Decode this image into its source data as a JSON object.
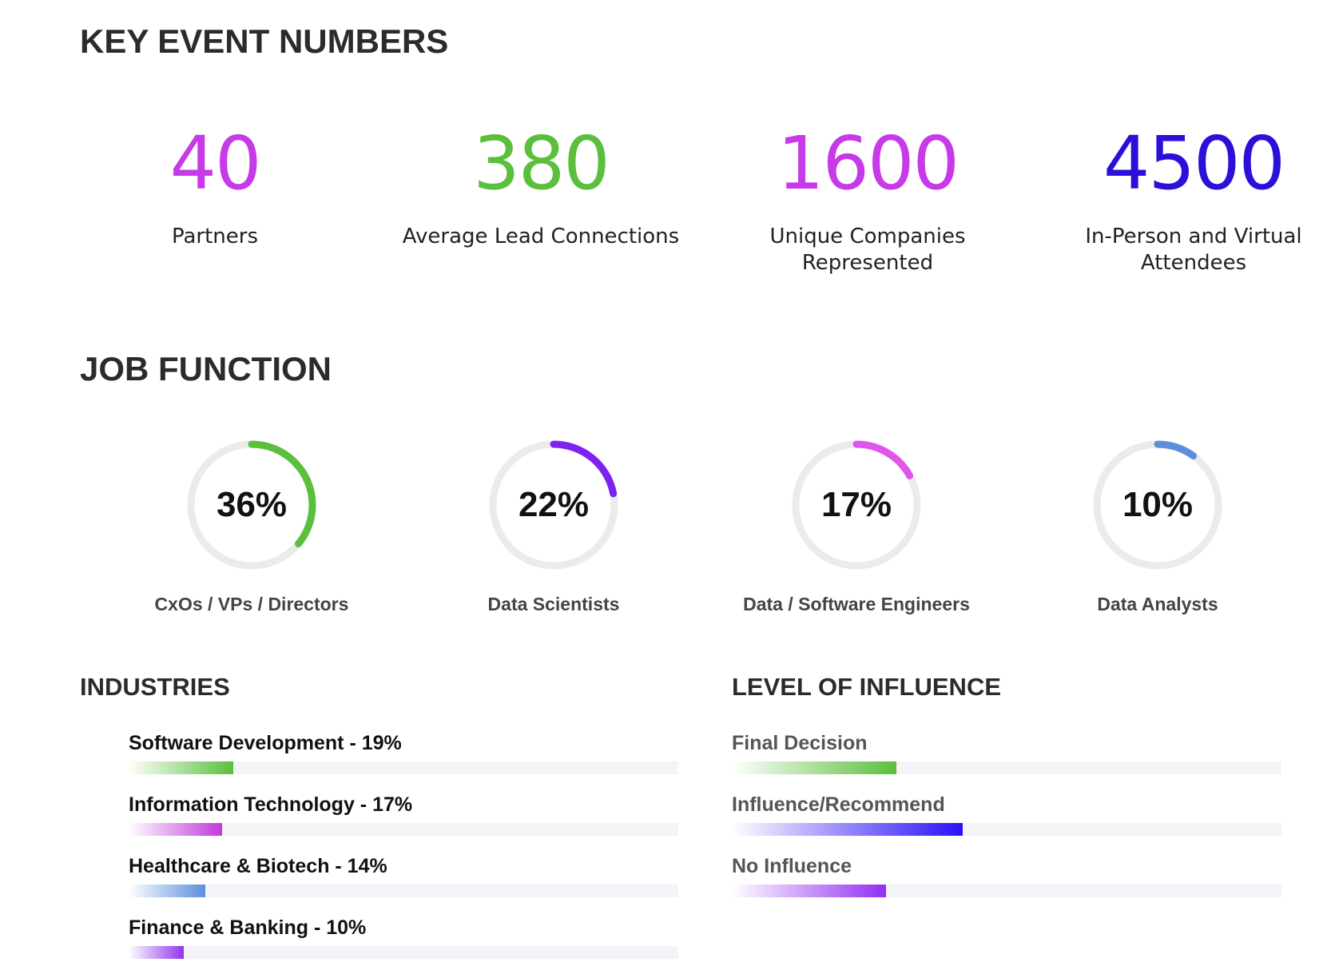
{
  "key_numbers": {
    "title": "KEY EVENT NUMBERS",
    "items": [
      {
        "value": "40",
        "label": "Partners",
        "color": "#c63ae8"
      },
      {
        "value": "380",
        "label": "Average Lead Connections",
        "color": "#5abf3c"
      },
      {
        "value": "1600",
        "label": "Unique Companies Represented",
        "color": "#c63ae8"
      },
      {
        "value": "4500",
        "label": "In-Person and Virtual Attendees",
        "color": "#2a10d8"
      }
    ]
  },
  "job_function": {
    "title": "JOB FUNCTION",
    "items": [
      {
        "percent": 36,
        "text": "36%",
        "label": "CxOs / VPs / Directors",
        "color": "#5abf3c"
      },
      {
        "percent": 22,
        "text": "22%",
        "label": "Data Scientists",
        "color": "#7e22f0"
      },
      {
        "percent": 17,
        "text": "17%",
        "label": "Data / Software Engineers",
        "color": "#e055ec"
      },
      {
        "percent": 10,
        "text": "10%",
        "label": "Data Analysts",
        "color": "#5b8fdb"
      }
    ]
  },
  "industries": {
    "title": "INDUSTRIES",
    "items": [
      {
        "label": "Software Development - 19%",
        "percent": 19,
        "color": "#5abf3c"
      },
      {
        "label": "Information Technology - 17%",
        "percent": 17,
        "color": "#c03ada"
      },
      {
        "label": "Healthcare & Biotech - 14%",
        "percent": 14,
        "color": "#5b8fdb"
      },
      {
        "label": "Finance & Banking - 10%",
        "percent": 10,
        "color": "#9035f0"
      }
    ]
  },
  "influence": {
    "title": "LEVEL OF INFLUENCE",
    "items": [
      {
        "label": "Final Decision",
        "percent": 30,
        "color": "#5abf3c"
      },
      {
        "label": "Influence/Recommend",
        "percent": 42,
        "color": "#2a10f5"
      },
      {
        "label": "No Influence",
        "percent": 28,
        "color": "#9030f0"
      }
    ]
  }
}
